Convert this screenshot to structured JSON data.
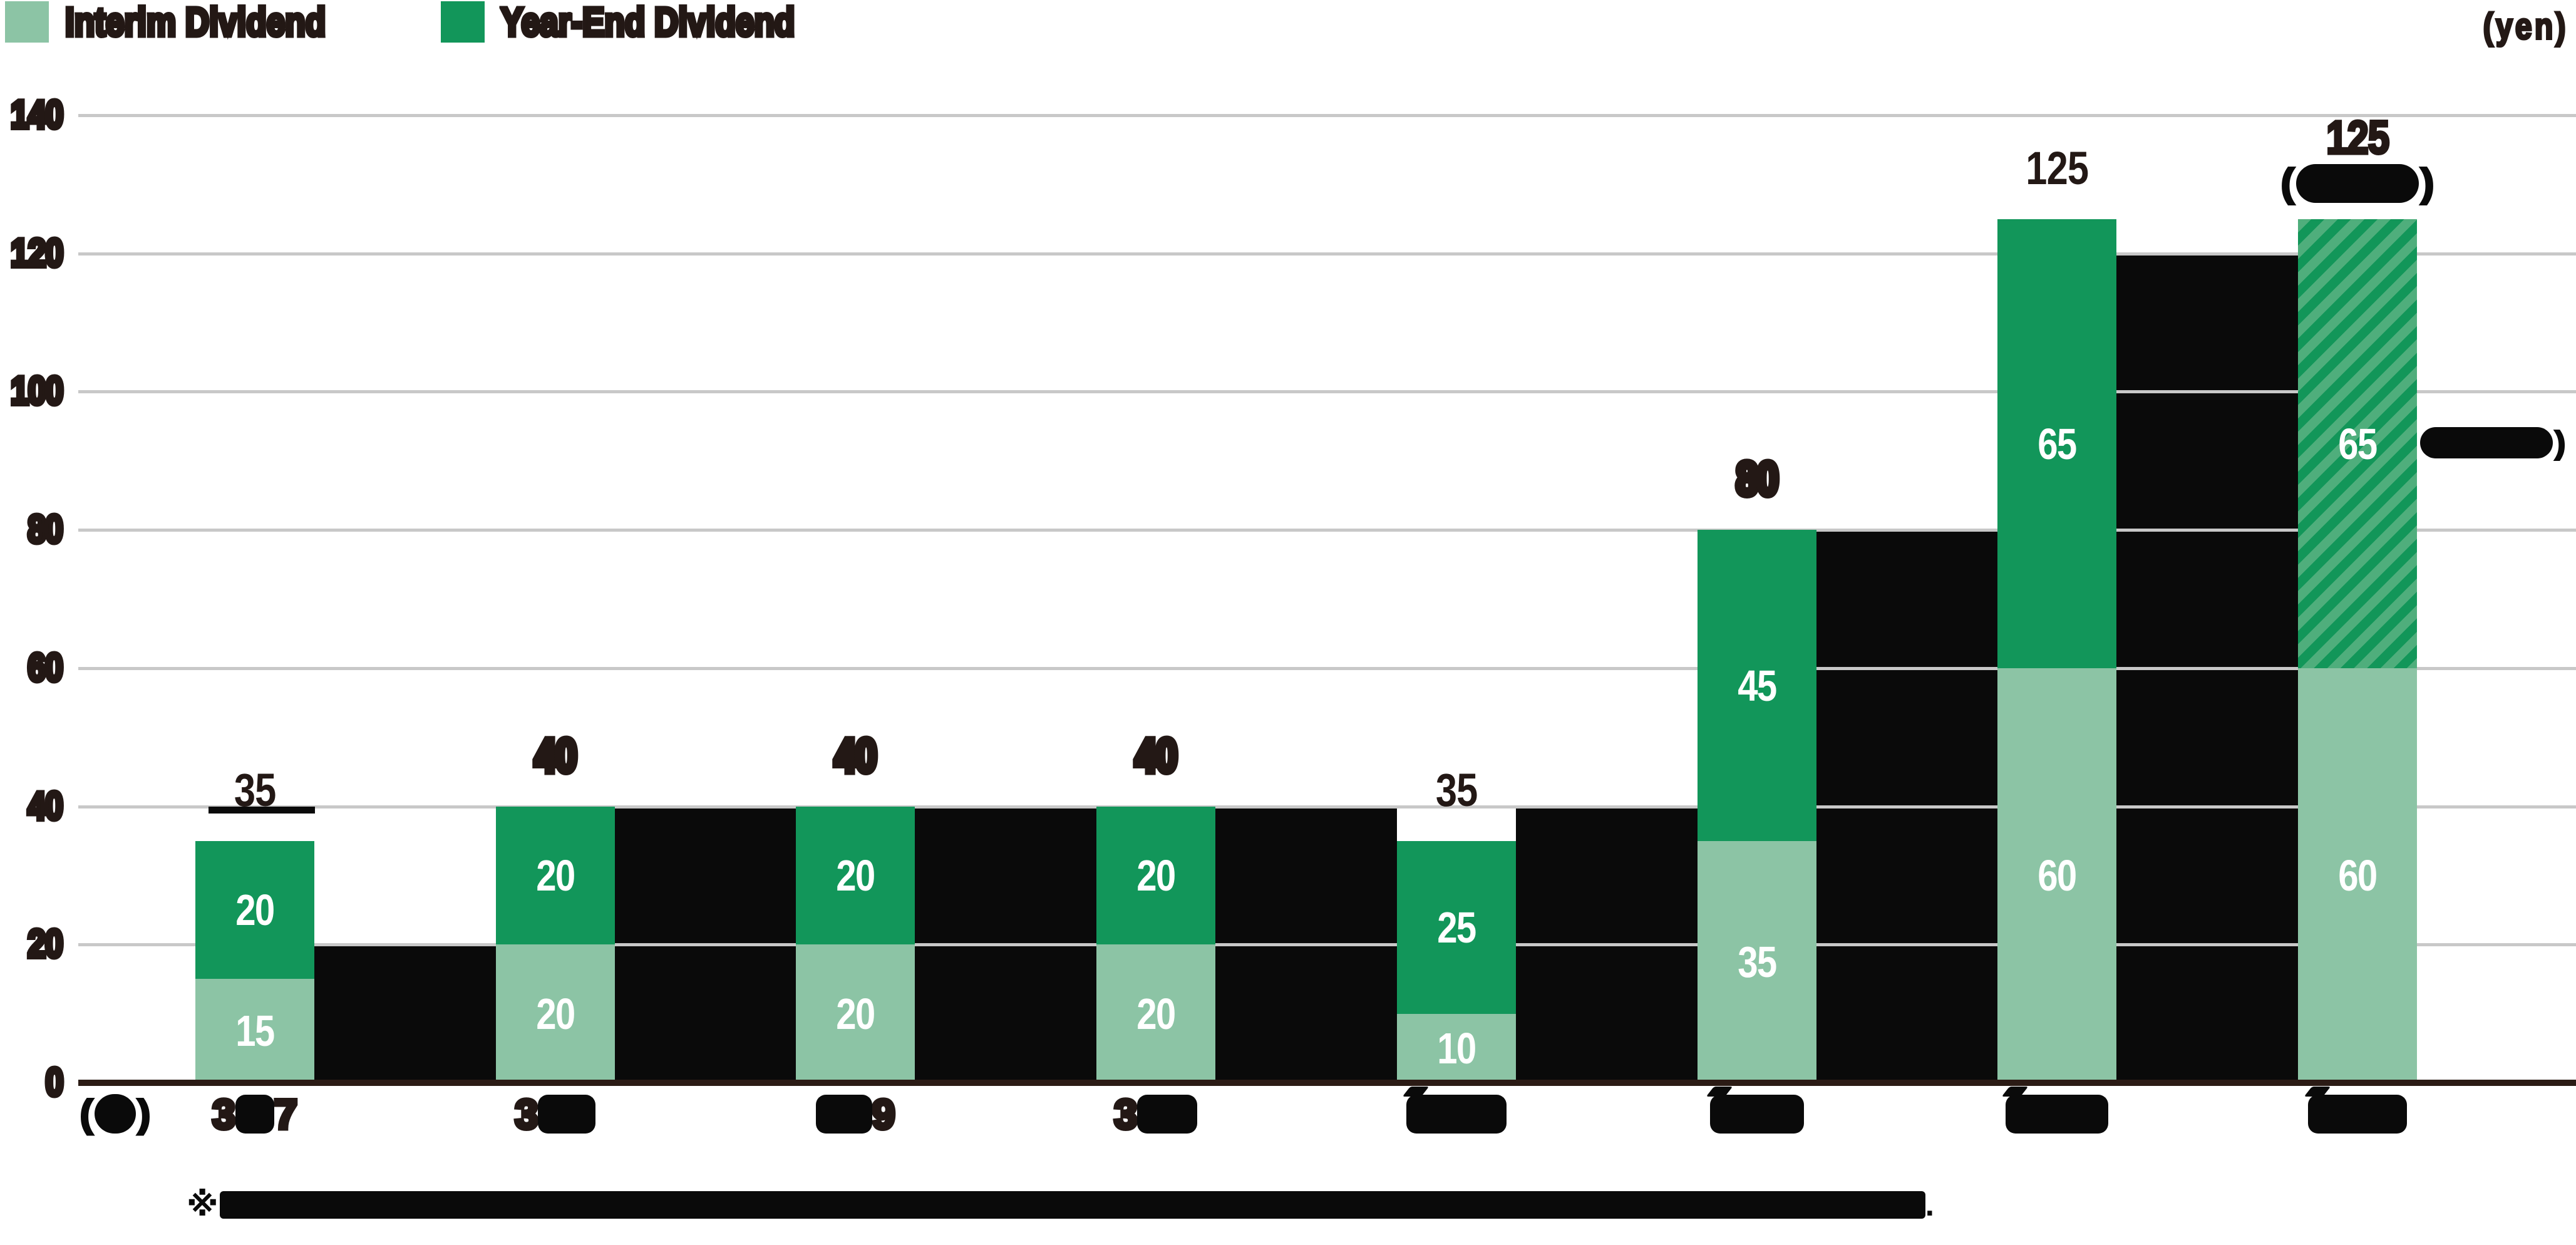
{
  "unit_label": "(yen)",
  "legend": {
    "items": [
      {
        "label": "Interim Dividend",
        "color": "#8CC4A5"
      },
      {
        "label": "Year-End Dividend",
        "color": "#12965A"
      }
    ]
  },
  "colors": {
    "interim": "#8CC4A5",
    "year_end": "#12965A",
    "hatch_light": "#4FAE7C",
    "hatch_dark": "#129659",
    "black_band": "#0a0a0a",
    "grid": "#C8C8C8",
    "axis": "#2B1B15",
    "text_dark": "#231815",
    "bar_label_white": "#FFFFFF"
  },
  "chart_data": {
    "type": "bar",
    "stacked": true,
    "title": "",
    "unit": "yen",
    "ylim": [
      0,
      140
    ],
    "yticks": [
      0,
      20,
      40,
      60,
      80,
      100,
      120,
      140
    ],
    "grid": true,
    "legend_position": "top-left",
    "categories": [
      {
        "pre": "3",
        "post": "7",
        "redacted": true,
        "tick": false,
        "blob_w": 62
      },
      {
        "pre": "3",
        "post": "",
        "redacted": true,
        "tick": false,
        "blob_w": 92
      },
      {
        "pre": "",
        "post": "9",
        "redacted": true,
        "tick": false,
        "blob_w": 90
      },
      {
        "pre": "3",
        "post": "",
        "redacted": true,
        "tick": false,
        "blob_w": 96
      },
      {
        "pre": "",
        "post": "",
        "redacted": true,
        "tick": true,
        "blob_w": 160
      },
      {
        "pre": "",
        "post": "",
        "redacted": true,
        "tick": true,
        "blob_w": 150
      },
      {
        "pre": "",
        "post": "",
        "redacted": true,
        "tick": true,
        "blob_w": 164
      },
      {
        "pre": "",
        "post": "",
        "redacted": true,
        "tick": true,
        "blob_w": 158
      }
    ],
    "series": [
      {
        "name": "Interim Dividend",
        "values": [
          15,
          20,
          20,
          20,
          10,
          35,
          60,
          60
        ]
      },
      {
        "name": "Year-End Dividend",
        "values": [
          20,
          20,
          20,
          20,
          25,
          45,
          65,
          65
        ]
      }
    ],
    "totals": [
      35,
      40,
      40,
      40,
      35,
      80,
      125,
      125
    ],
    "total_label_style": [
      "plain",
      "filled",
      "filled",
      "filled",
      "plain",
      "filled",
      "plain",
      "semi"
    ],
    "forecast_bar_index": 7,
    "black_band_values": [
      20,
      40,
      40,
      40,
      40,
      80,
      120
    ],
    "bar1_underline_present": true,
    "x_axis_corner_redacted": "( )",
    "annotations": {
      "bar8_pill_redacted": "( )",
      "right_pill_redacted": ")"
    }
  },
  "footnote": {
    "marker": "※",
    "redacted": true,
    "suffix": "."
  }
}
